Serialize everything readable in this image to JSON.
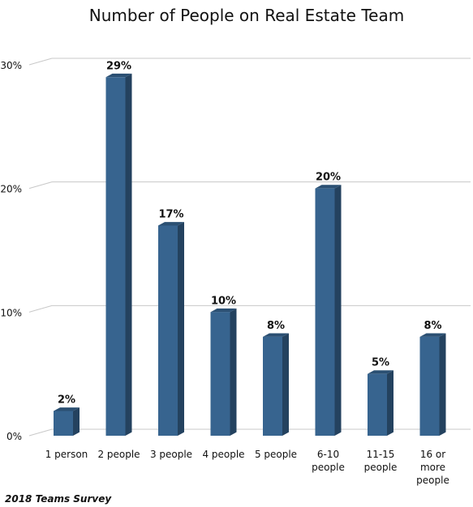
{
  "chart_data": {
    "type": "bar",
    "title": "Number of People on Real Estate Team",
    "categories": [
      [
        "1 person"
      ],
      [
        "2 people"
      ],
      [
        "3 people"
      ],
      [
        "4 people"
      ],
      [
        "5 people"
      ],
      [
        "6-10",
        "people"
      ],
      [
        "11-15",
        "people"
      ],
      [
        "16 or",
        "more",
        "people"
      ]
    ],
    "values": [
      2,
      29,
      17,
      10,
      8,
      20,
      5,
      8
    ],
    "data_labels": [
      "2%",
      "29%",
      "17%",
      "10%",
      "8%",
      "20%",
      "5%",
      "8%"
    ],
    "y_ticks": [
      0,
      10,
      20,
      30
    ],
    "y_tick_labels": [
      "0%",
      "10%",
      "20%",
      "30%"
    ],
    "ylim": [
      0,
      30
    ],
    "grid": true,
    "legend": "none",
    "bar_color": "#37648f",
    "bar_side_color": "#24425f",
    "bar_top_color": "#2b5073",
    "source": "2018 Teams Survey"
  }
}
